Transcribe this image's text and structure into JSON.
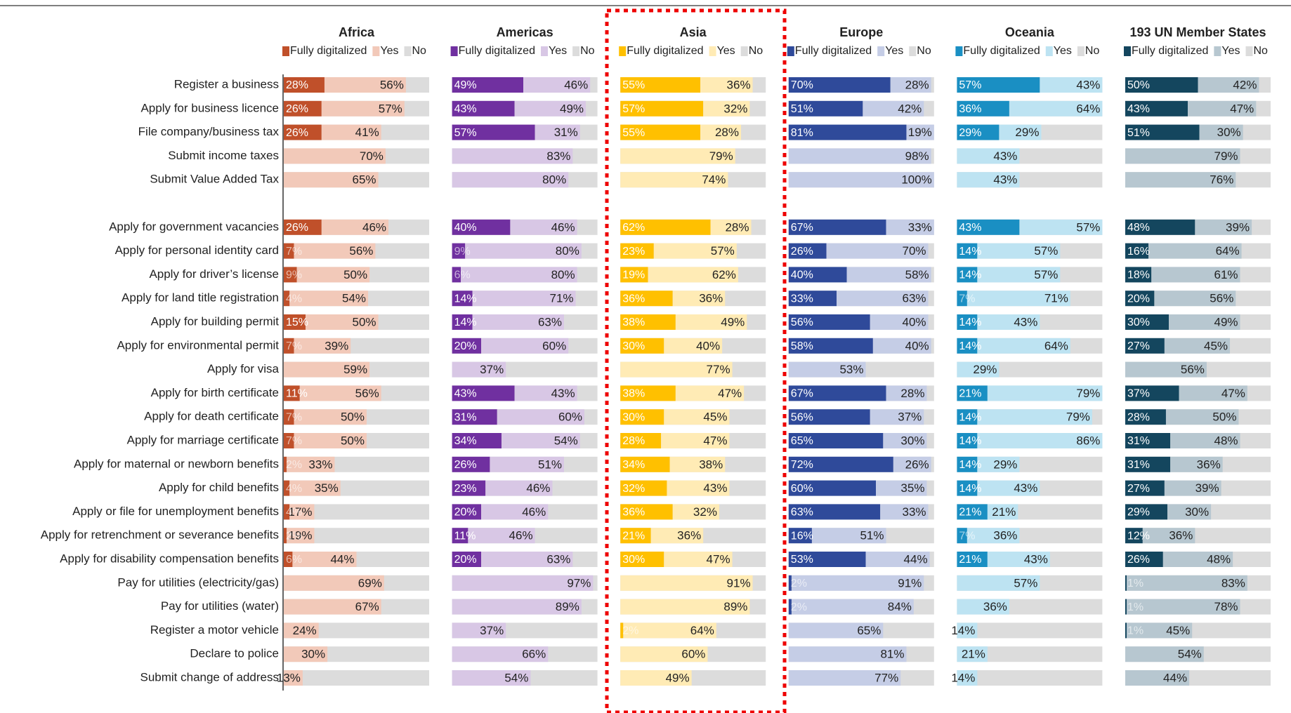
{
  "chart_data": {
    "type": "bar",
    "categories": [
      "Register a business",
      "Apply for business licence",
      "File company/business tax",
      "Submit income taxes",
      "Submit Value Added Tax",
      null,
      "Apply for government vacancies",
      "Apply for personal identity card",
      "Apply for driver’s license",
      "Apply for land title registration",
      "Apply for building permit",
      "Apply for environmental permit",
      "Apply for visa",
      "Apply for birth certificate",
      "Apply for death certificate",
      "Apply for marriage certificate",
      "Apply for maternal or newborn benefits",
      "Apply for child benefits",
      "Apply or file for unemployment benefits",
      "Apply for retrenchment or severance benefits",
      "Apply for disability compensation benefits",
      "Pay for utilities (electricity/gas)",
      "Pay for utilities (water)",
      "Register a motor vehicle",
      "Declare to police",
      "Submit change of address"
    ],
    "xlim": [
      0,
      100
    ],
    "panels": [
      {
        "title": "Africa",
        "title_color": "#c9502a",
        "series": [
          {
            "name": "Fully digitalized",
            "color": "#c0502a",
            "values": [
              28,
              26,
              26,
              null,
              null,
              null,
              26,
              7,
              9,
              4,
              15,
              7,
              null,
              11,
              7,
              7,
              2,
              4,
              4,
              2,
              6,
              null,
              null,
              null,
              null,
              null
            ],
            "value_labels": [
              "28%",
              "26%",
              "26%",
              null,
              null,
              null,
              "26%",
              "7%",
              "9%",
              "4%",
              "15%",
              "7%",
              null,
              "11%",
              "7%",
              "7%",
              "2%",
              "4%",
              "4%",
              "2%",
              "6%",
              null,
              null,
              null,
              null,
              null
            ]
          },
          {
            "name": "Yes",
            "color": "#f2c9b9",
            "values": [
              56,
              57,
              41,
              70,
              65,
              null,
              46,
              56,
              50,
              54,
              50,
              39,
              59,
              56,
              50,
              50,
              33,
              35,
              17,
              19,
              44,
              69,
              67,
              24,
              30,
              13
            ],
            "value_labels": [
              "56%",
              "57%",
              "41%",
              "70%",
              "65%",
              null,
              "46%",
              "56%",
              "50%",
              "54%",
              "50%",
              "39%",
              "59%",
              "56%",
              "50%",
              "50%",
              "33%",
              "35%",
              "17%",
              "19%",
              "44%",
              "69%",
              "67%",
              "24%",
              "30%",
              "13%"
            ]
          },
          {
            "name": "No",
            "color": "#dcdcdc"
          }
        ]
      },
      {
        "title": "Americas",
        "title_color": "#7030a0",
        "series": [
          {
            "name": "Fully digitalized",
            "color": "#7030a0",
            "values": [
              49,
              43,
              57,
              null,
              null,
              null,
              40,
              9,
              6,
              14,
              14,
              20,
              null,
              43,
              31,
              34,
              26,
              23,
              20,
              11,
              20,
              null,
              null,
              null,
              null,
              null
            ],
            "value_labels": [
              "49%",
              "43%",
              "57%",
              null,
              null,
              null,
              "40%",
              "9%",
              "6%",
              "14%",
              "14%",
              "20%",
              null,
              "43%",
              "31%",
              "34%",
              "26%",
              "23%",
              "20%",
              "11%",
              "20%",
              null,
              null,
              null,
              null,
              null
            ]
          },
          {
            "name": "Yes",
            "color": "#d8c7e5",
            "values": [
              46,
              49,
              31,
              83,
              80,
              null,
              46,
              80,
              80,
              71,
              63,
              60,
              37,
              43,
              60,
              54,
              51,
              46,
              46,
              46,
              63,
              97,
              89,
              37,
              66,
              54
            ],
            "value_labels": [
              "46%",
              "49%",
              "31%",
              "83%",
              "80%",
              null,
              "46%",
              "80%",
              "80%",
              "71%",
              "63%",
              "60%",
              "37%",
              "43%",
              "60%",
              "54%",
              "51%",
              "46%",
              "46%",
              "46%",
              "63%",
              "97%",
              "89%",
              "37%",
              "66%",
              "54%"
            ]
          },
          {
            "name": "No",
            "color": "#dcdcdc"
          }
        ]
      },
      {
        "title": "Asia",
        "title_color": "#ffc000",
        "series": [
          {
            "name": "Fully digitalized",
            "color": "#ffc000",
            "values": [
              55,
              57,
              55,
              null,
              null,
              null,
              62,
              23,
              19,
              36,
              38,
              30,
              null,
              38,
              30,
              28,
              34,
              32,
              36,
              21,
              30,
              null,
              null,
              2,
              null,
              null
            ],
            "value_labels": [
              "55%",
              "57%",
              "55%",
              null,
              null,
              null,
              "62%",
              "23%",
              "19%",
              "36%",
              "38%",
              "30%",
              null,
              "38%",
              "30%",
              "28%",
              "34%",
              "32%",
              "36%",
              "21%",
              "30%",
              null,
              null,
              "2%",
              null,
              null
            ]
          },
          {
            "name": "Yes",
            "color": "#ffebb5",
            "values": [
              36,
              32,
              28,
              79,
              74,
              null,
              28,
              57,
              62,
              36,
              49,
              40,
              77,
              47,
              45,
              47,
              38,
              43,
              32,
              36,
              47,
              91,
              89,
              64,
              60,
              49
            ],
            "value_labels": [
              "36%",
              "32%",
              "28%",
              "79%",
              "74%",
              null,
              "28%",
              "57%",
              "62%",
              "36%",
              "49%",
              "40%",
              "77%",
              "47%",
              "45%",
              "47%",
              "38%",
              "43%",
              "32%",
              "36%",
              "47%",
              "91%",
              "89%",
              "64%",
              "60%",
              "49%"
            ]
          },
          {
            "name": "No",
            "color": "#dcdcdc"
          }
        ]
      },
      {
        "title": "Europe",
        "title_color": "#2f4a9a",
        "series": [
          {
            "name": "Fully digitalized",
            "color": "#2f4a9a",
            "values": [
              70,
              51,
              81,
              null,
              null,
              null,
              67,
              26,
              40,
              33,
              56,
              58,
              null,
              67,
              56,
              65,
              72,
              60,
              63,
              16,
              53,
              2,
              2,
              null,
              null,
              null
            ],
            "value_labels": [
              "70%",
              "51%",
              "81%",
              null,
              null,
              null,
              "67%",
              "26%",
              "40%",
              "33%",
              "56%",
              "58%",
              null,
              "67%",
              "56%",
              "65%",
              "72%",
              "60%",
              "63%",
              "16%",
              "53%",
              "2%",
              "2%",
              null,
              null,
              null
            ]
          },
          {
            "name": "Yes",
            "color": "#c5cde6",
            "values": [
              28,
              42,
              19,
              98,
              100,
              null,
              33,
              70,
              58,
              63,
              40,
              40,
              53,
              28,
              37,
              30,
              26,
              35,
              33,
              51,
              44,
              91,
              84,
              65,
              81,
              77
            ],
            "value_labels": [
              "28%",
              "42%",
              "19%",
              "98%",
              "100%",
              null,
              "33%",
              "70%",
              "58%",
              "63%",
              "40%",
              "40%",
              "53%",
              "28%",
              "37%",
              "30%",
              "26%",
              "35%",
              "33%",
              "51%",
              "44%",
              "91%",
              "84%",
              "65%",
              "81%",
              "77%"
            ]
          },
          {
            "name": "No",
            "color": "#dcdcdc"
          }
        ]
      },
      {
        "title": "Oceania",
        "title_color": "#1a8fc3",
        "series": [
          {
            "name": "Fully digitalized",
            "color": "#1a8fc3",
            "values": [
              57,
              36,
              29,
              null,
              null,
              null,
              43,
              14,
              14,
              7,
              14,
              14,
              null,
              21,
              14,
              14,
              14,
              14,
              21,
              7,
              21,
              null,
              null,
              null,
              null,
              null
            ],
            "value_labels": [
              "57%",
              "36%",
              "29%",
              null,
              null,
              null,
              "43%",
              "14%",
              "14%",
              "7%",
              "14%",
              "14%",
              null,
              "21%",
              "14%",
              "14%",
              "14%",
              "14%",
              "21%",
              "7%",
              "21%",
              null,
              null,
              null,
              null,
              null
            ]
          },
          {
            "name": "Yes",
            "color": "#bde3f2",
            "values": [
              43,
              64,
              29,
              43,
              43,
              null,
              57,
              57,
              57,
              71,
              43,
              64,
              29,
              79,
              79,
              86,
              29,
              43,
              21,
              36,
              43,
              57,
              36,
              14,
              21,
              14
            ],
            "value_labels": [
              "43%",
              "64%",
              "29%",
              "43%",
              "43%",
              null,
              "57%",
              "57%",
              "57%",
              "71%",
              "43%",
              "64%",
              "29%",
              "79%",
              "79%",
              "86%",
              "29%",
              "43%",
              "21%",
              "36%",
              "43%",
              "57%",
              "36%",
              "14%",
              "21%",
              "14%"
            ]
          },
          {
            "name": "No",
            "color": "#dcdcdc"
          }
        ]
      },
      {
        "title": "193 UN Member States",
        "title_color": "#1f3a4a",
        "series": [
          {
            "name": "Fully digitalized",
            "color": "#14465e",
            "values": [
              50,
              43,
              51,
              null,
              null,
              null,
              48,
              16,
              18,
              20,
              30,
              27,
              null,
              37,
              28,
              31,
              31,
              27,
              29,
              12,
              26,
              1,
              1,
              1,
              null,
              null
            ],
            "value_labels": [
              "50%",
              "43%",
              "51%",
              null,
              null,
              null,
              "48%",
              "16%",
              "18%",
              "20%",
              "30%",
              "27%",
              null,
              "37%",
              "28%",
              "31%",
              "31%",
              "27%",
              "29%",
              "12%",
              "26%",
              "1%",
              "1%",
              "1%",
              null,
              null
            ]
          },
          {
            "name": "Yes",
            "color": "#b7c7d0",
            "values": [
              42,
              47,
              30,
              79,
              76,
              null,
              39,
              64,
              61,
              56,
              49,
              45,
              56,
              47,
              50,
              48,
              36,
              39,
              30,
              36,
              48,
              83,
              78,
              45,
              54,
              44
            ],
            "value_labels": [
              "42%",
              "47%",
              "30%",
              "79%",
              "76%",
              null,
              "39%",
              "64%",
              "61%",
              "56%",
              "49%",
              "45%",
              "56%",
              "47%",
              "50%",
              "48%",
              "36%",
              "39%",
              "30%",
              "36%",
              "48%",
              "83%",
              "78%",
              "45%",
              "54%",
              "44%"
            ]
          },
          {
            "name": "No",
            "color": "#dcdcdc"
          }
        ]
      }
    ]
  }
}
